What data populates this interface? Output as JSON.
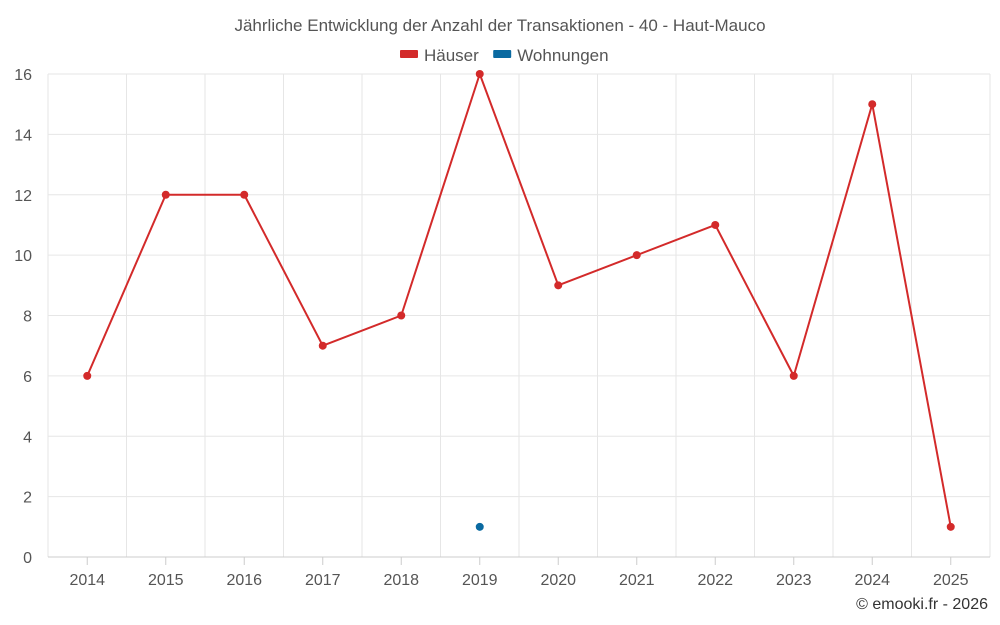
{
  "chart_data": {
    "type": "line",
    "title": "Jährliche Entwicklung der Anzahl der Transaktionen - 40 - Haut-Mauco",
    "categories": [
      "2014",
      "2015",
      "2016",
      "2017",
      "2018",
      "2019",
      "2020",
      "2021",
      "2022",
      "2023",
      "2024",
      "2025"
    ],
    "series": [
      {
        "name": "Häuser",
        "color": "#d32a2a",
        "values": [
          6,
          12,
          12,
          7,
          8,
          16,
          9,
          10,
          11,
          6,
          15,
          1
        ]
      },
      {
        "name": "Wohnungen",
        "color": "#0a6aa1",
        "values": [
          null,
          null,
          null,
          null,
          null,
          1,
          null,
          null,
          null,
          null,
          null,
          null
        ]
      }
    ],
    "ylim": [
      0,
      16
    ],
    "yticks": [
      0,
      2,
      4,
      6,
      8,
      10,
      12,
      14,
      16
    ],
    "grid": true,
    "legend_position": "top-center",
    "xlabel": "",
    "ylabel": ""
  },
  "credit": "© emooki.fr - 2026"
}
